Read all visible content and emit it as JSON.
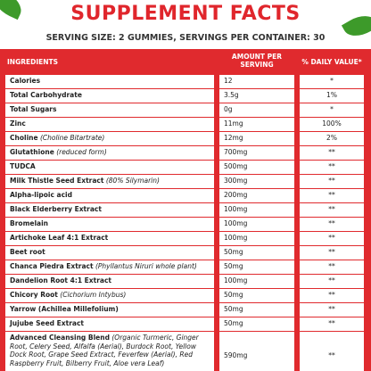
{
  "header": {
    "title": "SUPPLEMENT FACTS",
    "subtitle": "SERVING SIZE: 2 GUMMIES, SERVINGS PER CONTAINER: 30"
  },
  "table": {
    "columns": [
      "INGREDIENTS",
      "AMOUNT PER SERVING",
      "% DAILY VALUE*"
    ],
    "rows": [
      {
        "name": "Calories",
        "amount": "12",
        "dv": "*"
      },
      {
        "name": "Total Carbohydrate",
        "amount": "3.5g",
        "dv": "1%"
      },
      {
        "name": "Total Sugars",
        "amount": "0g",
        "dv": "*"
      },
      {
        "name": "Zinc",
        "amount": "11mg",
        "dv": "100%"
      },
      {
        "name": "Choline",
        "note": "(Choline Bitartrate)",
        "amount": "12mg",
        "dv": "2%"
      },
      {
        "name": "Glutathione",
        "note": "(reduced form)",
        "amount": "700mg",
        "dv": "**"
      },
      {
        "name": "TUDCA",
        "amount": "500mg",
        "dv": "**"
      },
      {
        "name": "Milk Thistle Seed Extract",
        "note": "(80% Silymarin)",
        "amount": "300mg",
        "dv": "**"
      },
      {
        "name": "Alpha-lipoic acid",
        "amount": "200mg",
        "dv": "**"
      },
      {
        "name": "Black Elderberry Extract",
        "amount": "100mg",
        "dv": "**"
      },
      {
        "name": "Bromelain",
        "amount": "100mg",
        "dv": "**"
      },
      {
        "name": "Artichoke Leaf 4:1 Extract",
        "amount": "100mg",
        "dv": "**"
      },
      {
        "name": "Beet root",
        "amount": "50mg",
        "dv": "**"
      },
      {
        "name": "Chanca Piedra Extract",
        "note": "(Phyllantus Niruri whole plant)",
        "amount": "50mg",
        "dv": "**"
      },
      {
        "name": "Dandelion Root 4:1 Extract",
        "amount": "100mg",
        "dv": "**"
      },
      {
        "name": "Chicory Root",
        "note": "(Cichorium Intybus)",
        "amount": "50mg",
        "dv": "**"
      },
      {
        "name": "Yarrow (Achillea Millefolium)",
        "amount": "50mg",
        "dv": "**"
      },
      {
        "name": "Jujube Seed Extract",
        "amount": "50mg",
        "dv": "**"
      },
      {
        "name": "Advanced Cleansing Blend",
        "note": "(Organic Turmeric, Ginger Root, Celery Seed, Alfalfa (Aerial), Burdock Root, Yellow Dock Root, Grape Seed Extract, Feverfew (Aerial), Red Raspberry Fruit, Bilberry Fruit, Aloe vera Leaf)",
        "amount": "590mg",
        "dv": "**"
      }
    ]
  }
}
